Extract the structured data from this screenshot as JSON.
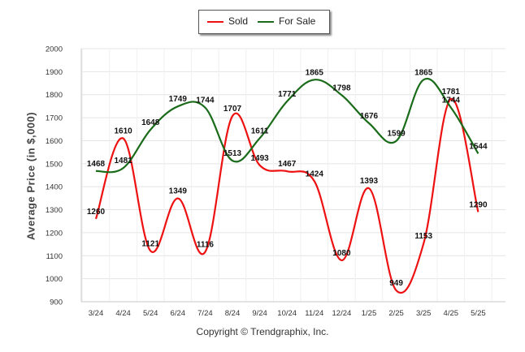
{
  "chart_data": {
    "type": "line",
    "title": "",
    "xlabel": "",
    "ylabel": "Average Price (in $,000)",
    "ylim": [
      900,
      2000
    ],
    "yticks": [
      900,
      1000,
      1100,
      1200,
      1300,
      1400,
      1500,
      1600,
      1700,
      1800,
      1900,
      2000
    ],
    "categories": [
      "3/24",
      "4/24",
      "5/24",
      "6/24",
      "7/24",
      "8/24",
      "9/24",
      "10/24",
      "11/24",
      "12/24",
      "1/25",
      "2/25",
      "3/25",
      "4/25",
      "5/25"
    ],
    "series": [
      {
        "name": "Sold",
        "color": "#ee1111",
        "values": [
          1260,
          1610,
          1121,
          1349,
          1116,
          1707,
          1493,
          1467,
          1424,
          1080,
          1393,
          949,
          1153,
          1781,
          1290
        ]
      },
      {
        "name": "For Sale",
        "color": "#1a6b1a",
        "values": [
          1468,
          1481,
          1648,
          1749,
          1744,
          1513,
          1611,
          1771,
          1865,
          1798,
          1676,
          1599,
          1865,
          1744,
          1544
        ]
      }
    ],
    "grid": true,
    "legend_position": "top-center",
    "data_labels": true
  },
  "legend": {
    "sold_label": "Sold",
    "forsale_label": "For Sale"
  },
  "footer": {
    "copyright": "Copyright © Trendgraphix, Inc."
  }
}
